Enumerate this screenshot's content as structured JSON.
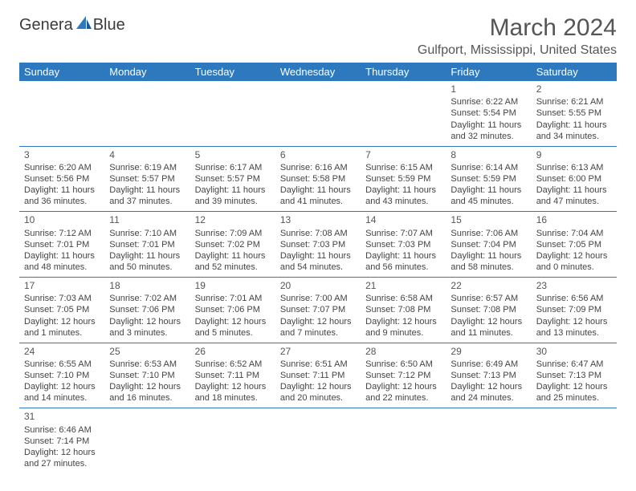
{
  "logo": {
    "text1": "Genera",
    "text2": "Blue",
    "brand_color": "#2e78bd"
  },
  "title": "March 2024",
  "location": "Gulfport, Mississippi, United States",
  "colors": {
    "header_bg": "#2e78bd",
    "header_text": "#ffffff",
    "border": "#2e78bd",
    "body_text": "#444444",
    "title_text": "#555555",
    "background": "#ffffff"
  },
  "typography": {
    "title_fontsize": 30,
    "location_fontsize": 16,
    "th_fontsize": 13,
    "cell_fontsize": 11
  },
  "dayNames": [
    "Sunday",
    "Monday",
    "Tuesday",
    "Wednesday",
    "Thursday",
    "Friday",
    "Saturday"
  ],
  "weeks": [
    [
      null,
      null,
      null,
      null,
      null,
      {
        "n": "1",
        "sunrise": "6:22 AM",
        "sunset": "5:54 PM",
        "dh": "11",
        "dm": "32"
      },
      {
        "n": "2",
        "sunrise": "6:21 AM",
        "sunset": "5:55 PM",
        "dh": "11",
        "dm": "34"
      }
    ],
    [
      {
        "n": "3",
        "sunrise": "6:20 AM",
        "sunset": "5:56 PM",
        "dh": "11",
        "dm": "36"
      },
      {
        "n": "4",
        "sunrise": "6:19 AM",
        "sunset": "5:57 PM",
        "dh": "11",
        "dm": "37"
      },
      {
        "n": "5",
        "sunrise": "6:17 AM",
        "sunset": "5:57 PM",
        "dh": "11",
        "dm": "39"
      },
      {
        "n": "6",
        "sunrise": "6:16 AM",
        "sunset": "5:58 PM",
        "dh": "11",
        "dm": "41"
      },
      {
        "n": "7",
        "sunrise": "6:15 AM",
        "sunset": "5:59 PM",
        "dh": "11",
        "dm": "43"
      },
      {
        "n": "8",
        "sunrise": "6:14 AM",
        "sunset": "5:59 PM",
        "dh": "11",
        "dm": "45"
      },
      {
        "n": "9",
        "sunrise": "6:13 AM",
        "sunset": "6:00 PM",
        "dh": "11",
        "dm": "47"
      }
    ],
    [
      {
        "n": "10",
        "sunrise": "7:12 AM",
        "sunset": "7:01 PM",
        "dh": "11",
        "dm": "48"
      },
      {
        "n": "11",
        "sunrise": "7:10 AM",
        "sunset": "7:01 PM",
        "dh": "11",
        "dm": "50"
      },
      {
        "n": "12",
        "sunrise": "7:09 AM",
        "sunset": "7:02 PM",
        "dh": "11",
        "dm": "52"
      },
      {
        "n": "13",
        "sunrise": "7:08 AM",
        "sunset": "7:03 PM",
        "dh": "11",
        "dm": "54"
      },
      {
        "n": "14",
        "sunrise": "7:07 AM",
        "sunset": "7:03 PM",
        "dh": "11",
        "dm": "56"
      },
      {
        "n": "15",
        "sunrise": "7:06 AM",
        "sunset": "7:04 PM",
        "dh": "11",
        "dm": "58"
      },
      {
        "n": "16",
        "sunrise": "7:04 AM",
        "sunset": "7:05 PM",
        "dh": "12",
        "dm": "0"
      }
    ],
    [
      {
        "n": "17",
        "sunrise": "7:03 AM",
        "sunset": "7:05 PM",
        "dh": "12",
        "dm": "1"
      },
      {
        "n": "18",
        "sunrise": "7:02 AM",
        "sunset": "7:06 PM",
        "dh": "12",
        "dm": "3"
      },
      {
        "n": "19",
        "sunrise": "7:01 AM",
        "sunset": "7:06 PM",
        "dh": "12",
        "dm": "5"
      },
      {
        "n": "20",
        "sunrise": "7:00 AM",
        "sunset": "7:07 PM",
        "dh": "12",
        "dm": "7"
      },
      {
        "n": "21",
        "sunrise": "6:58 AM",
        "sunset": "7:08 PM",
        "dh": "12",
        "dm": "9"
      },
      {
        "n": "22",
        "sunrise": "6:57 AM",
        "sunset": "7:08 PM",
        "dh": "12",
        "dm": "11"
      },
      {
        "n": "23",
        "sunrise": "6:56 AM",
        "sunset": "7:09 PM",
        "dh": "12",
        "dm": "13"
      }
    ],
    [
      {
        "n": "24",
        "sunrise": "6:55 AM",
        "sunset": "7:10 PM",
        "dh": "12",
        "dm": "14"
      },
      {
        "n": "25",
        "sunrise": "6:53 AM",
        "sunset": "7:10 PM",
        "dh": "12",
        "dm": "16"
      },
      {
        "n": "26",
        "sunrise": "6:52 AM",
        "sunset": "7:11 PM",
        "dh": "12",
        "dm": "18"
      },
      {
        "n": "27",
        "sunrise": "6:51 AM",
        "sunset": "7:11 PM",
        "dh": "12",
        "dm": "20"
      },
      {
        "n": "28",
        "sunrise": "6:50 AM",
        "sunset": "7:12 PM",
        "dh": "12",
        "dm": "22"
      },
      {
        "n": "29",
        "sunrise": "6:49 AM",
        "sunset": "7:13 PM",
        "dh": "12",
        "dm": "24"
      },
      {
        "n": "30",
        "sunrise": "6:47 AM",
        "sunset": "7:13 PM",
        "dh": "12",
        "dm": "25"
      }
    ],
    [
      {
        "n": "31",
        "sunrise": "6:46 AM",
        "sunset": "7:14 PM",
        "dh": "12",
        "dm": "27"
      },
      null,
      null,
      null,
      null,
      null,
      null
    ]
  ],
  "labels": {
    "sunrise_prefix": "Sunrise: ",
    "sunset_prefix": "Sunset: ",
    "daylight_prefix": "Daylight: ",
    "hours_word": " hours",
    "and_word": "and ",
    "minutes_word": " minutes."
  }
}
